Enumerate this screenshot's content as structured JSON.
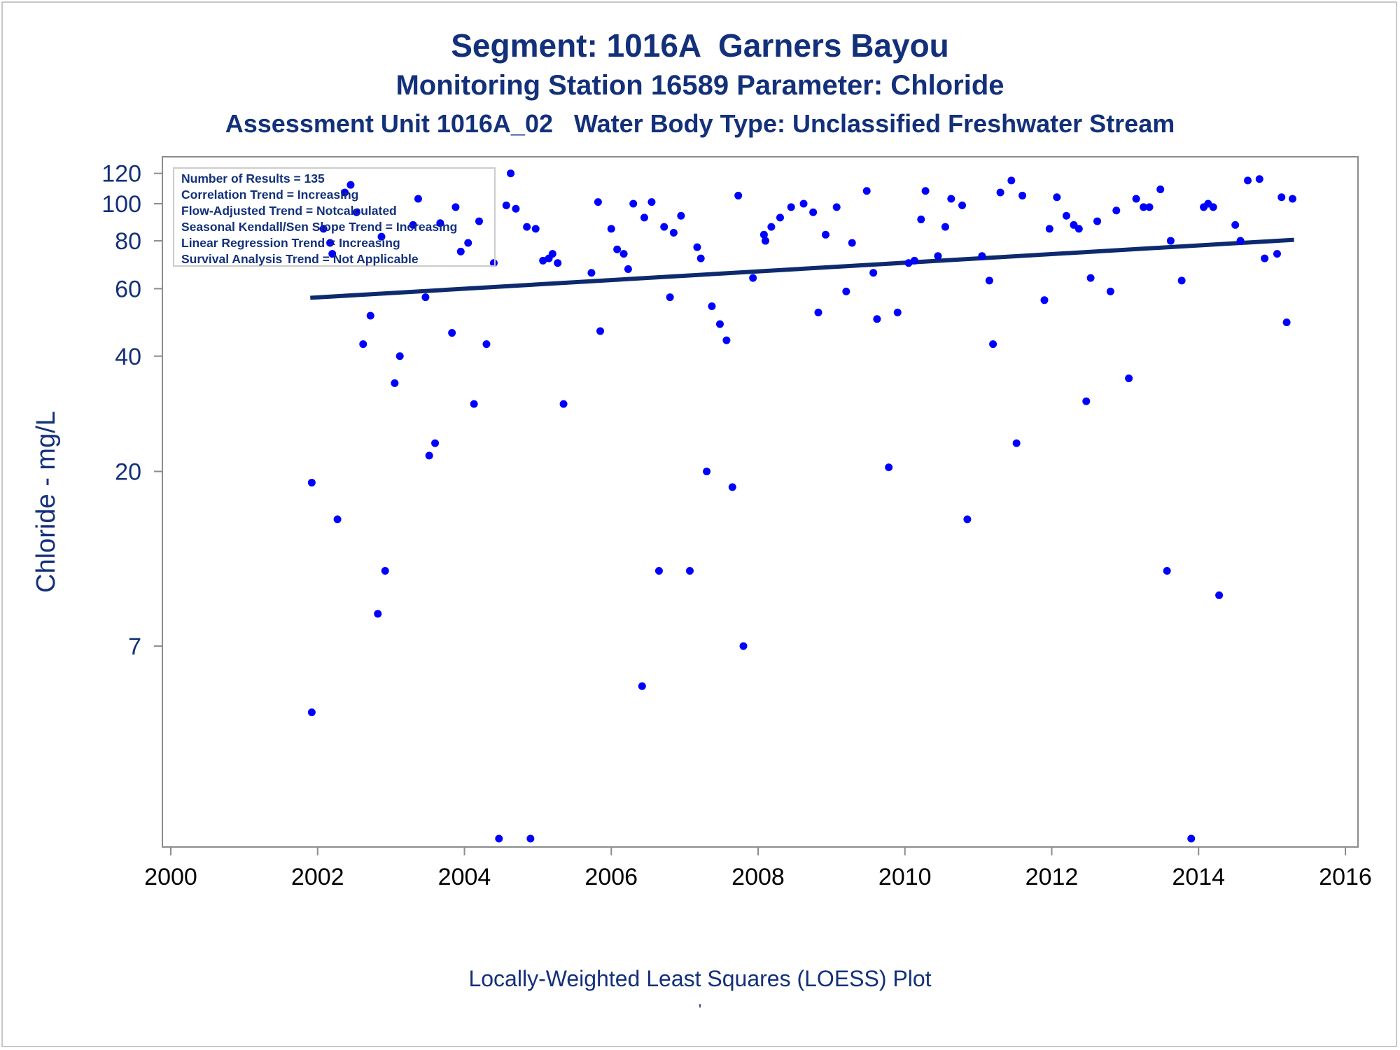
{
  "titles": {
    "line1": "Segment: 1016A  Garners Bayou",
    "line2": "Monitoring Station 16589 Parameter: Chloride",
    "line3": "Assessment Unit 1016A_02   Water Body Type: Unclassified Freshwater Stream"
  },
  "stats": [
    "Number of Results = 135",
    "Correlation Trend = Increasing",
    "Flow-Adjusted Trend = Notcalculated",
    "Seasonal Kendall/Sen Slope Trend = Increasing",
    "Linear Regression Trend = Increasing",
    "Survival Analysis Trend = Not Applicable"
  ],
  "footnote": "Locally-Weighted Least Squares (LOESS) Plot",
  "footnote_mark": "'",
  "colors": {
    "text": "#13307a",
    "points": "#0000ff",
    "trend_line": "#0d2a6e",
    "axis": "#8c8c8c"
  },
  "chart_data": {
    "type": "scatter",
    "title": "Segment: 1016A  Garners Bayou",
    "subtitle": "Monitoring Station 16589 Parameter: Chloride",
    "xlabel": "",
    "ylabel": "Chloride - mg/L",
    "y_scale": "log",
    "xlim": [
      2000,
      2016
    ],
    "ylim": [
      2.2,
      125
    ],
    "x_ticks": [
      "2000",
      "2002",
      "2004",
      "2006",
      "2008",
      "2010",
      "2012",
      "2014",
      "2016"
    ],
    "y_ticks": [
      "7",
      "20",
      "40",
      "60",
      "80",
      "100",
      "120"
    ],
    "y_tick_values": [
      7,
      20,
      40,
      60,
      80,
      100,
      120
    ],
    "grid": false,
    "legend": "top-left inset text box",
    "trend_line": {
      "x": [
        2001.9,
        2015.3
      ],
      "y": [
        56.8,
        80.5
      ]
    },
    "points": [
      [
        2001.92,
        18.7
      ],
      [
        2001.92,
        4.7
      ],
      [
        2002.08,
        86
      ],
      [
        2002.17,
        79
      ],
      [
        2002.2,
        74
      ],
      [
        2002.27,
        15
      ],
      [
        2002.37,
        107
      ],
      [
        2002.45,
        112
      ],
      [
        2002.53,
        95
      ],
      [
        2002.62,
        43
      ],
      [
        2002.72,
        51
      ],
      [
        2002.82,
        8.5
      ],
      [
        2002.87,
        82
      ],
      [
        2002.92,
        11
      ],
      [
        2003.05,
        34
      ],
      [
        2003.12,
        40
      ],
      [
        2003.3,
        88
      ],
      [
        2003.37,
        103
      ],
      [
        2003.47,
        57
      ],
      [
        2003.52,
        22
      ],
      [
        2003.6,
        23.7
      ],
      [
        2003.67,
        89
      ],
      [
        2003.83,
        46
      ],
      [
        2003.88,
        98
      ],
      [
        2003.95,
        75
      ],
      [
        2004.05,
        79
      ],
      [
        2004.13,
        30
      ],
      [
        2004.2,
        90
      ],
      [
        2004.3,
        43
      ],
      [
        2004.4,
        70
      ],
      [
        2004.47,
        2.2
      ],
      [
        2004.57,
        99
      ],
      [
        2004.63,
        120
      ],
      [
        2004.7,
        97
      ],
      [
        2004.85,
        87
      ],
      [
        2004.9,
        2.2
      ],
      [
        2004.97,
        86
      ],
      [
        2005.07,
        71
      ],
      [
        2005.15,
        72
      ],
      [
        2005.2,
        74
      ],
      [
        2005.27,
        70
      ],
      [
        2005.35,
        30
      ],
      [
        2005.73,
        66
      ],
      [
        2005.82,
        101
      ],
      [
        2005.85,
        46.5
      ],
      [
        2006.0,
        86
      ],
      [
        2006.08,
        76
      ],
      [
        2006.17,
        74
      ],
      [
        2006.23,
        67.5
      ],
      [
        2006.3,
        100
      ],
      [
        2006.42,
        5.5
      ],
      [
        2006.45,
        92
      ],
      [
        2006.55,
        101
      ],
      [
        2006.65,
        11
      ],
      [
        2006.72,
        87
      ],
      [
        2006.8,
        57
      ],
      [
        2006.85,
        84
      ],
      [
        2006.95,
        93
      ],
      [
        2007.07,
        11
      ],
      [
        2007.17,
        77
      ],
      [
        2007.22,
        72
      ],
      [
        2007.3,
        20
      ],
      [
        2007.37,
        54
      ],
      [
        2007.48,
        48.5
      ],
      [
        2007.57,
        44
      ],
      [
        2007.65,
        18.2
      ],
      [
        2007.73,
        105
      ],
      [
        2007.8,
        7
      ],
      [
        2007.93,
        64
      ],
      [
        2008.08,
        83
      ],
      [
        2008.1,
        80
      ],
      [
        2008.18,
        87
      ],
      [
        2008.3,
        92
      ],
      [
        2008.45,
        98
      ],
      [
        2008.62,
        100
      ],
      [
        2008.75,
        95
      ],
      [
        2008.82,
        52
      ],
      [
        2008.92,
        83
      ],
      [
        2009.07,
        98
      ],
      [
        2009.2,
        59
      ],
      [
        2009.28,
        79
      ],
      [
        2009.48,
        108
      ],
      [
        2009.57,
        66
      ],
      [
        2009.62,
        50
      ],
      [
        2009.78,
        20.5
      ],
      [
        2009.9,
        52
      ],
      [
        2010.05,
        70
      ],
      [
        2010.13,
        71
      ],
      [
        2010.22,
        91
      ],
      [
        2010.28,
        108
      ],
      [
        2010.45,
        73
      ],
      [
        2010.55,
        87
      ],
      [
        2010.63,
        103
      ],
      [
        2010.78,
        99
      ],
      [
        2010.85,
        15
      ],
      [
        2011.05,
        73
      ],
      [
        2011.15,
        63
      ],
      [
        2011.2,
        43
      ],
      [
        2011.3,
        107
      ],
      [
        2011.45,
        115
      ],
      [
        2011.52,
        23.7
      ],
      [
        2011.6,
        105
      ],
      [
        2011.9,
        56
      ],
      [
        2011.97,
        86
      ],
      [
        2012.07,
        104
      ],
      [
        2012.2,
        93
      ],
      [
        2012.3,
        88
      ],
      [
        2012.37,
        86
      ],
      [
        2012.47,
        30.5
      ],
      [
        2012.53,
        64
      ],
      [
        2012.62,
        90
      ],
      [
        2012.8,
        59
      ],
      [
        2012.88,
        96
      ],
      [
        2013.05,
        35
      ],
      [
        2013.15,
        103
      ],
      [
        2013.25,
        98
      ],
      [
        2013.33,
        98
      ],
      [
        2013.48,
        109
      ],
      [
        2013.57,
        11
      ],
      [
        2013.62,
        80
      ],
      [
        2013.77,
        63
      ],
      [
        2013.9,
        2.2
      ],
      [
        2014.07,
        98
      ],
      [
        2014.13,
        100
      ],
      [
        2014.2,
        98
      ],
      [
        2014.28,
        9.5
      ],
      [
        2014.5,
        88
      ],
      [
        2014.57,
        80
      ],
      [
        2014.67,
        115
      ],
      [
        2014.83,
        116
      ],
      [
        2014.9,
        72
      ],
      [
        2015.07,
        74
      ],
      [
        2015.13,
        104
      ],
      [
        2015.2,
        49
      ],
      [
        2015.28,
        103
      ]
    ]
  }
}
